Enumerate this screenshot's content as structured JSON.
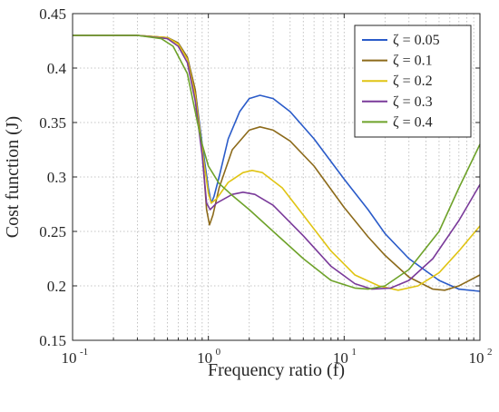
{
  "chart_data": {
    "type": "line",
    "xlabel": "Frequency ratio (f)",
    "ylabel": "Cost function (J)",
    "xscale": "log",
    "xlim": [
      0.1,
      100
    ],
    "ylim": [
      0.15,
      0.45
    ],
    "x_ticks": [
      {
        "base": "10",
        "exp": "-1"
      },
      {
        "base": "10",
        "exp": "0"
      },
      {
        "base": "10",
        "exp": "1"
      },
      {
        "base": "10",
        "exp": "2"
      }
    ],
    "y_ticks": [
      "0.15",
      "0.2",
      "0.25",
      "0.3",
      "0.35",
      "0.4",
      "0.45"
    ],
    "grid": {
      "major": true,
      "minor": true,
      "style": "dotted"
    },
    "legend": "top-right",
    "series": [
      {
        "name": "ζ = 0.05",
        "color": "#2a5bc9",
        "points": [
          [
            0.1,
            0.43
          ],
          [
            0.3,
            0.43
          ],
          [
            0.5,
            0.428
          ],
          [
            0.6,
            0.423
          ],
          [
            0.7,
            0.41
          ],
          [
            0.8,
            0.38
          ],
          [
            0.9,
            0.33
          ],
          [
            1.0,
            0.29
          ],
          [
            1.05,
            0.276
          ],
          [
            1.1,
            0.282
          ],
          [
            1.2,
            0.3
          ],
          [
            1.4,
            0.335
          ],
          [
            1.7,
            0.36
          ],
          [
            2.0,
            0.372
          ],
          [
            2.4,
            0.375
          ],
          [
            3.0,
            0.372
          ],
          [
            4.0,
            0.36
          ],
          [
            6.0,
            0.335
          ],
          [
            10,
            0.298
          ],
          [
            15,
            0.27
          ],
          [
            20,
            0.248
          ],
          [
            30,
            0.225
          ],
          [
            50,
            0.205
          ],
          [
            70,
            0.197
          ],
          [
            100,
            0.195
          ]
        ]
      },
      {
        "name": "ζ = 0.1",
        "color": "#8c6a1a",
        "points": [
          [
            0.1,
            0.43
          ],
          [
            0.3,
            0.43
          ],
          [
            0.5,
            0.428
          ],
          [
            0.6,
            0.423
          ],
          [
            0.7,
            0.41
          ],
          [
            0.8,
            0.38
          ],
          [
            0.9,
            0.325
          ],
          [
            0.97,
            0.27
          ],
          [
            1.02,
            0.256
          ],
          [
            1.08,
            0.265
          ],
          [
            1.2,
            0.29
          ],
          [
            1.5,
            0.325
          ],
          [
            2.0,
            0.343
          ],
          [
            2.4,
            0.346
          ],
          [
            3.0,
            0.343
          ],
          [
            4.0,
            0.333
          ],
          [
            6.0,
            0.31
          ],
          [
            10,
            0.272
          ],
          [
            15,
            0.245
          ],
          [
            20,
            0.228
          ],
          [
            30,
            0.208
          ],
          [
            45,
            0.197
          ],
          [
            55,
            0.196
          ],
          [
            70,
            0.2
          ],
          [
            100,
            0.21
          ]
        ]
      },
      {
        "name": "ζ = 0.2",
        "color": "#e0c414",
        "points": [
          [
            0.1,
            0.43
          ],
          [
            0.3,
            0.43
          ],
          [
            0.5,
            0.428
          ],
          [
            0.6,
            0.422
          ],
          [
            0.7,
            0.408
          ],
          [
            0.8,
            0.375
          ],
          [
            0.9,
            0.325
          ],
          [
            1.0,
            0.285
          ],
          [
            1.05,
            0.276
          ],
          [
            1.15,
            0.28
          ],
          [
            1.4,
            0.295
          ],
          [
            1.8,
            0.304
          ],
          [
            2.1,
            0.306
          ],
          [
            2.5,
            0.304
          ],
          [
            3.5,
            0.29
          ],
          [
            5.0,
            0.265
          ],
          [
            8.0,
            0.232
          ],
          [
            12,
            0.21
          ],
          [
            18,
            0.2
          ],
          [
            25,
            0.196
          ],
          [
            35,
            0.2
          ],
          [
            50,
            0.212
          ],
          [
            70,
            0.232
          ],
          [
            100,
            0.255
          ]
        ]
      },
      {
        "name": "ζ = 0.3",
        "color": "#7a3a9a",
        "points": [
          [
            0.1,
            0.43
          ],
          [
            0.3,
            0.43
          ],
          [
            0.5,
            0.427
          ],
          [
            0.6,
            0.42
          ],
          [
            0.7,
            0.405
          ],
          [
            0.8,
            0.37
          ],
          [
            0.9,
            0.32
          ],
          [
            0.97,
            0.276
          ],
          [
            1.03,
            0.27
          ],
          [
            1.15,
            0.276
          ],
          [
            1.5,
            0.284
          ],
          [
            1.8,
            0.286
          ],
          [
            2.2,
            0.284
          ],
          [
            3.0,
            0.274
          ],
          [
            5.0,
            0.246
          ],
          [
            8.0,
            0.218
          ],
          [
            12,
            0.202
          ],
          [
            16,
            0.197
          ],
          [
            22,
            0.198
          ],
          [
            30,
            0.205
          ],
          [
            45,
            0.225
          ],
          [
            70,
            0.26
          ],
          [
            100,
            0.293
          ]
        ]
      },
      {
        "name": "ζ = 0.4",
        "color": "#6ea22a",
        "points": [
          [
            0.1,
            0.43
          ],
          [
            0.3,
            0.43
          ],
          [
            0.45,
            0.427
          ],
          [
            0.55,
            0.42
          ],
          [
            0.7,
            0.395
          ],
          [
            0.8,
            0.36
          ],
          [
            0.9,
            0.33
          ],
          [
            1.0,
            0.31
          ],
          [
            1.2,
            0.294
          ],
          [
            1.5,
            0.283
          ],
          [
            2.0,
            0.27
          ],
          [
            3.0,
            0.25
          ],
          [
            5.0,
            0.225
          ],
          [
            8.0,
            0.205
          ],
          [
            12,
            0.198
          ],
          [
            15,
            0.197
          ],
          [
            20,
            0.2
          ],
          [
            30,
            0.215
          ],
          [
            50,
            0.25
          ],
          [
            70,
            0.29
          ],
          [
            100,
            0.33
          ]
        ]
      }
    ]
  }
}
